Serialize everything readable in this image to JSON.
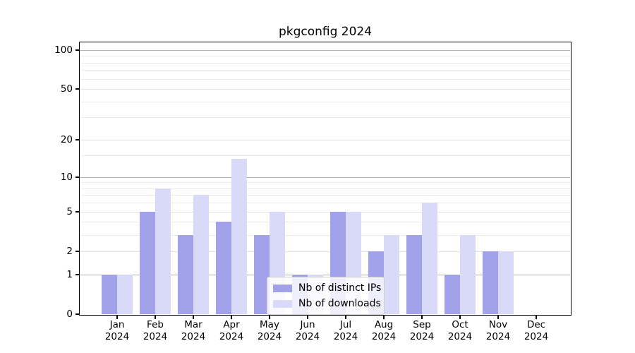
{
  "title": "pkgconfig 2024",
  "colors": {
    "ips_bar": "#a2a2eb",
    "downloads_bar": "#d9d9f8",
    "grid_major": "#b2b2b2",
    "grid_labeled": "#e3e3e3",
    "grid_minor": "#ebebeb",
    "axis": "#000000",
    "legend_border": "#cfcfcf"
  },
  "legend": {
    "items": [
      {
        "label": "Nb of distinct IPs",
        "color_key": "ips_bar"
      },
      {
        "label": "Nb of downloads",
        "color_key": "downloads_bar"
      }
    ]
  },
  "chart_data": {
    "type": "bar",
    "title": "pkgconfig 2024",
    "categories": [
      "Jan 2024",
      "Feb 2024",
      "Mar 2024",
      "Apr 2024",
      "May 2024",
      "Jun 2024",
      "Jul 2024",
      "Aug 2024",
      "Sep 2024",
      "Oct 2024",
      "Nov 2024",
      "Dec 2024"
    ],
    "series": [
      {
        "name": "Nb of distinct IPs",
        "values": [
          1,
          5,
          3,
          4,
          3,
          1,
          5,
          2,
          3,
          1,
          2,
          0
        ]
      },
      {
        "name": "Nb of downloads",
        "values": [
          1,
          8,
          7,
          14,
          5,
          1,
          5,
          3,
          6,
          3,
          2,
          0
        ]
      }
    ],
    "xlabel": "",
    "ylabel": "",
    "ylim": [
      0,
      100
    ],
    "y_scale": "log10(value+1)",
    "y_tick_values": [
      0,
      1,
      2,
      5,
      10,
      20,
      50,
      100
    ],
    "major_gridline_values": [
      1,
      10,
      100
    ],
    "labeled_light_gridline_values": [
      2,
      5,
      20,
      50
    ],
    "minor_gridline_values": [
      3,
      4,
      6,
      7,
      8,
      9,
      15,
      30,
      40,
      60,
      70,
      80,
      90
    ],
    "grid": "on",
    "legend_position": "lower center"
  }
}
